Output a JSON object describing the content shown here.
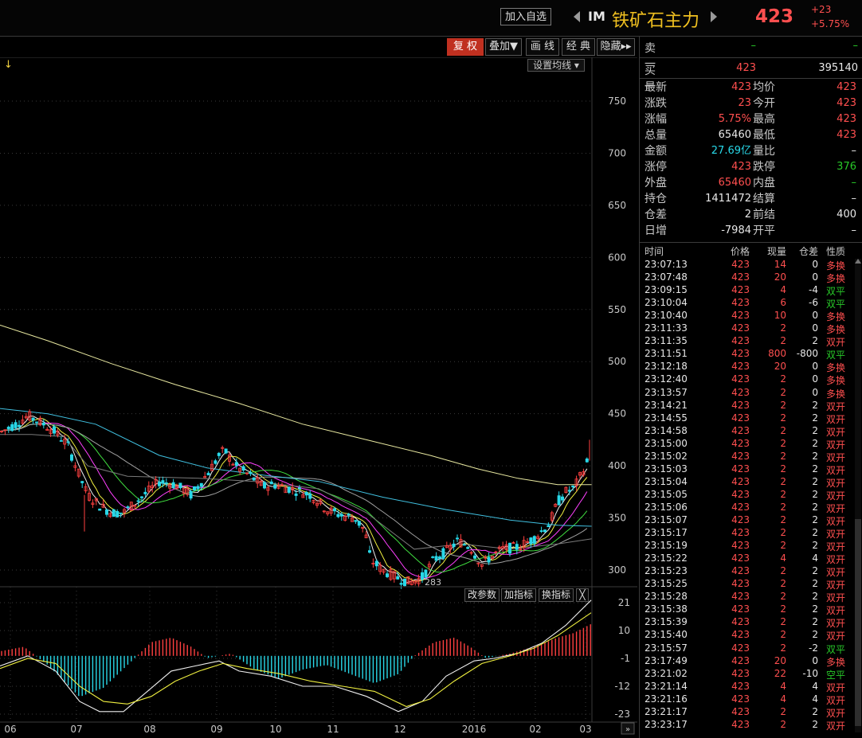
{
  "header": {
    "add_favorite_label": "加入自选",
    "symbol_code": "IM",
    "symbol_name": "铁矿石主力",
    "price": "423",
    "change": "+23",
    "change_pct": "+5.75%"
  },
  "toolbar": {
    "fuquan": "复 权",
    "diejia": "叠加▼",
    "huaxian": "画 线",
    "jingdian": "经 典",
    "yincang": "隐藏▸▸",
    "set_ma": "设置均线 ▾"
  },
  "sub_toolbar": {
    "params": "改参数",
    "add_indicator": "加指标",
    "swap_indicator": "换指标",
    "close": "╳"
  },
  "chart": {
    "top_marker": "↓",
    "low_label": "283",
    "price_axis_ticks": [
      "750",
      "700",
      "650",
      "600",
      "550",
      "500",
      "450",
      "400",
      "350",
      "300"
    ],
    "macd_axis_ticks": [
      "21",
      "10",
      "-1",
      "-12",
      "-23"
    ],
    "x_axis_labels": [
      "06",
      "07",
      "08",
      "09",
      "10",
      "11",
      "12",
      "2016",
      "02",
      "03"
    ],
    "colors": {
      "up": "#ff4040",
      "down": "#28d8e8",
      "ma_white": "#f0f0f0",
      "ma_yellow": "#f0f040",
      "ma_magenta": "#ff40ff",
      "ma_green": "#40e040",
      "ma_gray": "#a0a0a0",
      "ma_cyan": "#40c0e0",
      "ma_long": "#e8e8a0"
    }
  },
  "quote": {
    "sell1": {
      "label": "卖一",
      "price": "–",
      "volume": "–"
    },
    "buy1": {
      "label": "买一",
      "price": "423",
      "volume": "395140"
    },
    "rows": [
      {
        "l1": "最新",
        "v1": "423",
        "c1": "red",
        "l2": "均价",
        "v2": "423",
        "c2": "red"
      },
      {
        "l1": "涨跌",
        "v1": "23",
        "c1": "red",
        "l2": "今开",
        "v2": "423",
        "c2": "red"
      },
      {
        "l1": "涨幅",
        "v1": "5.75%",
        "c1": "red",
        "l2": "最高",
        "v2": "423",
        "c2": "red"
      },
      {
        "l1": "总量",
        "v1": "65460",
        "c1": "white",
        "l2": "最低",
        "v2": "423",
        "c2": "red"
      },
      {
        "l1": "金额",
        "v1": "27.69亿",
        "c1": "cyan",
        "l2": "量比",
        "v2": "–",
        "c2": "white"
      },
      {
        "l1": "涨停",
        "v1": "423",
        "c1": "red",
        "l2": "跌停",
        "v2": "376",
        "c2": "green"
      },
      {
        "l1": "外盘",
        "v1": "65460",
        "c1": "red",
        "l2": "内盘",
        "v2": "–",
        "c2": "green"
      },
      {
        "l1": "持仓",
        "v1": "1411472",
        "c1": "white",
        "l2": "结算",
        "v2": "–",
        "c2": "white"
      },
      {
        "l1": "仓差",
        "v1": "2",
        "c1": "white",
        "l2": "前结",
        "v2": "400",
        "c2": "white"
      },
      {
        "l1": "日增",
        "v1": "-7984",
        "c1": "white",
        "l2": "开平",
        "v2": "–",
        "c2": "white"
      }
    ]
  },
  "trades": {
    "headers": [
      "时间",
      "价格",
      "现量",
      "仓差",
      "性质"
    ],
    "rows": [
      {
        "time": "23:07:13",
        "price": "423",
        "vol": "14",
        "oi": "0",
        "nature": "多换"
      },
      {
        "time": "23:07:48",
        "price": "423",
        "vol": "20",
        "oi": "0",
        "nature": "多换"
      },
      {
        "time": "23:09:15",
        "price": "423",
        "vol": "4",
        "oi": "-4",
        "nature": "双平"
      },
      {
        "time": "23:10:04",
        "price": "423",
        "vol": "6",
        "oi": "-6",
        "nature": "双平"
      },
      {
        "time": "23:10:40",
        "price": "423",
        "vol": "10",
        "oi": "0",
        "nature": "多换"
      },
      {
        "time": "23:11:33",
        "price": "423",
        "vol": "2",
        "oi": "0",
        "nature": "多换"
      },
      {
        "time": "23:11:35",
        "price": "423",
        "vol": "2",
        "oi": "2",
        "nature": "双开"
      },
      {
        "time": "23:11:51",
        "price": "423",
        "vol": "800",
        "oi": "-800",
        "nature": "双平"
      },
      {
        "time": "23:12:18",
        "price": "423",
        "vol": "20",
        "oi": "0",
        "nature": "多换"
      },
      {
        "time": "23:12:40",
        "price": "423",
        "vol": "2",
        "oi": "0",
        "nature": "多换"
      },
      {
        "time": "23:13:57",
        "price": "423",
        "vol": "2",
        "oi": "0",
        "nature": "多换"
      },
      {
        "time": "23:14:21",
        "price": "423",
        "vol": "2",
        "oi": "2",
        "nature": "双开"
      },
      {
        "time": "23:14:55",
        "price": "423",
        "vol": "2",
        "oi": "2",
        "nature": "双开"
      },
      {
        "time": "23:14:58",
        "price": "423",
        "vol": "2",
        "oi": "2",
        "nature": "双开"
      },
      {
        "time": "23:15:00",
        "price": "423",
        "vol": "2",
        "oi": "2",
        "nature": "双开"
      },
      {
        "time": "23:15:02",
        "price": "423",
        "vol": "2",
        "oi": "2",
        "nature": "双开"
      },
      {
        "time": "23:15:03",
        "price": "423",
        "vol": "2",
        "oi": "2",
        "nature": "双开"
      },
      {
        "time": "23:15:04",
        "price": "423",
        "vol": "2",
        "oi": "2",
        "nature": "双开"
      },
      {
        "time": "23:15:05",
        "price": "423",
        "vol": "2",
        "oi": "2",
        "nature": "双开"
      },
      {
        "time": "23:15:06",
        "price": "423",
        "vol": "2",
        "oi": "2",
        "nature": "双开"
      },
      {
        "time": "23:15:07",
        "price": "423",
        "vol": "2",
        "oi": "2",
        "nature": "双开"
      },
      {
        "time": "23:15:17",
        "price": "423",
        "vol": "2",
        "oi": "2",
        "nature": "双开"
      },
      {
        "time": "23:15:19",
        "price": "423",
        "vol": "2",
        "oi": "2",
        "nature": "双开"
      },
      {
        "time": "23:15:22",
        "price": "423",
        "vol": "4",
        "oi": "4",
        "nature": "双开"
      },
      {
        "time": "23:15:23",
        "price": "423",
        "vol": "2",
        "oi": "2",
        "nature": "双开"
      },
      {
        "time": "23:15:25",
        "price": "423",
        "vol": "2",
        "oi": "2",
        "nature": "双开"
      },
      {
        "time": "23:15:28",
        "price": "423",
        "vol": "2",
        "oi": "2",
        "nature": "双开"
      },
      {
        "time": "23:15:38",
        "price": "423",
        "vol": "2",
        "oi": "2",
        "nature": "双开"
      },
      {
        "time": "23:15:39",
        "price": "423",
        "vol": "2",
        "oi": "2",
        "nature": "双开"
      },
      {
        "time": "23:15:40",
        "price": "423",
        "vol": "2",
        "oi": "2",
        "nature": "双开"
      },
      {
        "time": "23:15:57",
        "price": "423",
        "vol": "2",
        "oi": "-2",
        "nature": "双平"
      },
      {
        "time": "23:17:49",
        "price": "423",
        "vol": "20",
        "oi": "0",
        "nature": "多换"
      },
      {
        "time": "23:21:02",
        "price": "423",
        "vol": "22",
        "oi": "-10",
        "nature": "空平"
      },
      {
        "time": "23:21:14",
        "price": "423",
        "vol": "4",
        "oi": "4",
        "nature": "双开"
      },
      {
        "time": "23:21:16",
        "price": "423",
        "vol": "4",
        "oi": "4",
        "nature": "双开"
      },
      {
        "time": "23:21:17",
        "price": "423",
        "vol": "2",
        "oi": "2",
        "nature": "双开"
      },
      {
        "time": "23:23:17",
        "price": "423",
        "vol": "2",
        "oi": "2",
        "nature": "双开"
      }
    ]
  }
}
